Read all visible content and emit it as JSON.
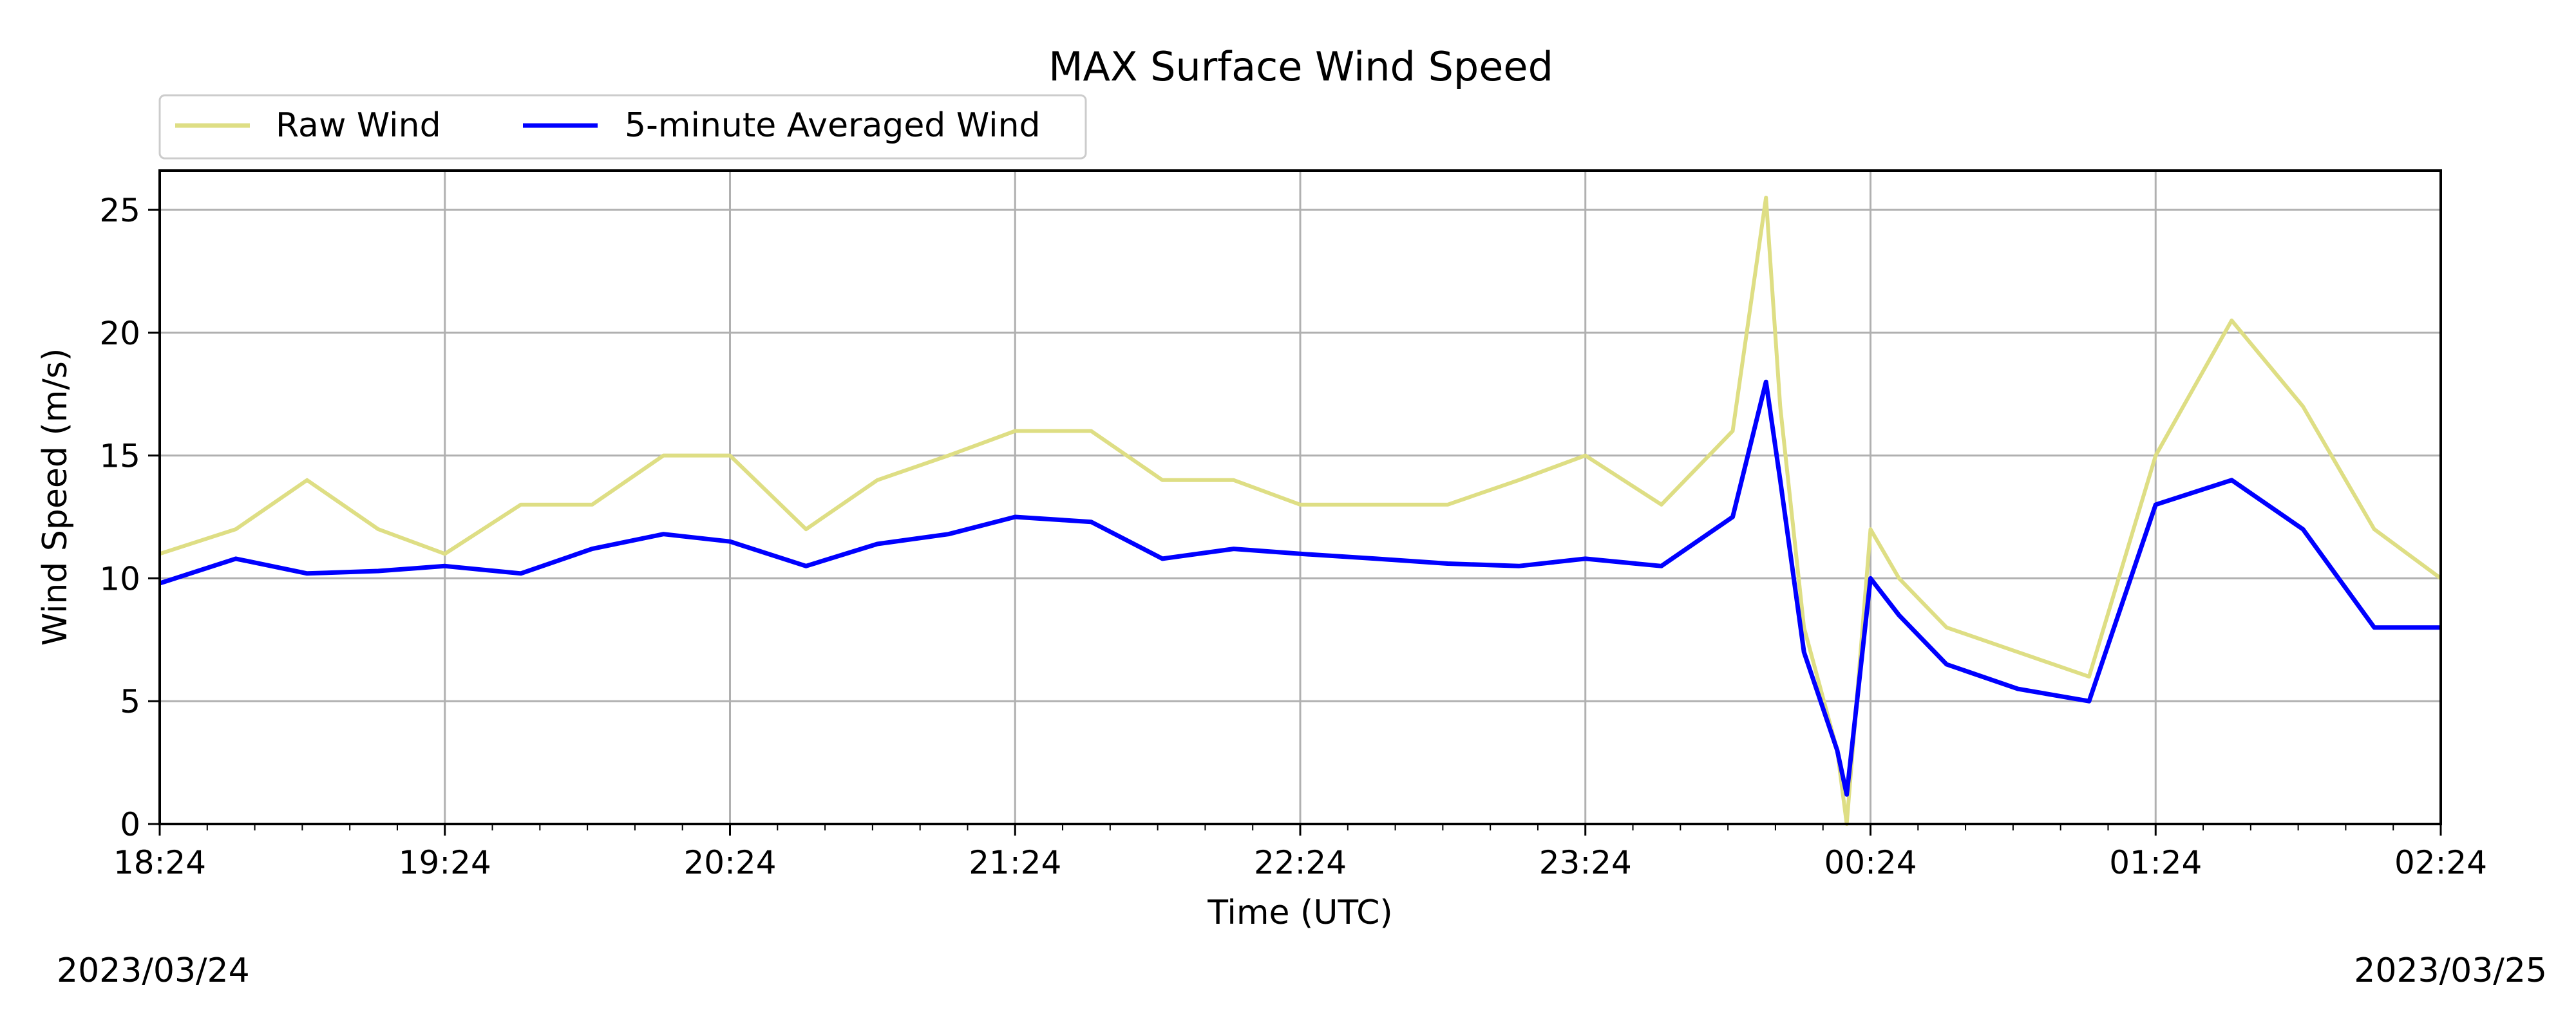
{
  "chart_data": {
    "type": "line",
    "title": "MAX Surface Wind Speed",
    "xlabel": "Time (UTC)",
    "ylabel": "Wind Speed (m/s)",
    "ylim": [
      0,
      26.6
    ],
    "xlim": [
      "2023-03-24 18:24",
      "2023-03-25 02:24"
    ],
    "x_tick_labels": [
      "18:24",
      "19:24",
      "20:24",
      "21:24",
      "22:24",
      "23:24",
      "00:24",
      "01:24",
      "02:24"
    ],
    "y_ticks": [
      0,
      5,
      10,
      15,
      20,
      25
    ],
    "grid": true,
    "legend_placement": "top-left",
    "date_left": "2023/03/24",
    "date_right": "2023/03/25",
    "series": [
      {
        "name": "Raw Wind",
        "color": "#dede84",
        "x": [
          "18:24",
          "18:40",
          "18:55",
          "19:10",
          "19:24",
          "19:40",
          "19:55",
          "20:10",
          "20:24",
          "20:40",
          "20:55",
          "21:10",
          "21:24",
          "21:40",
          "21:55",
          "22:10",
          "22:24",
          "22:40",
          "22:55",
          "23:10",
          "23:24",
          "23:40",
          "23:55",
          "00:02",
          "00:05",
          "00:10",
          "00:17",
          "00:19",
          "00:24",
          "00:30",
          "00:40",
          "00:55",
          "01:10",
          "01:24",
          "01:40",
          "01:55",
          "02:10",
          "02:24"
        ],
        "values": [
          11,
          12,
          14,
          12,
          11,
          13,
          13,
          15,
          15,
          12,
          14,
          15,
          16,
          16,
          14,
          14,
          13,
          13,
          13,
          14,
          15,
          13,
          16,
          25.5,
          17,
          8,
          3,
          0,
          12,
          10,
          8,
          7,
          6,
          15,
          20.5,
          17,
          12,
          10
        ]
      },
      {
        "name": "5-minute Averaged Wind",
        "color": "#0000ff",
        "x": [
          "18:24",
          "18:40",
          "18:55",
          "19:10",
          "19:24",
          "19:40",
          "19:55",
          "20:10",
          "20:24",
          "20:40",
          "20:55",
          "21:10",
          "21:24",
          "21:40",
          "21:55",
          "22:10",
          "22:24",
          "22:40",
          "22:55",
          "23:10",
          "23:24",
          "23:40",
          "23:55",
          "00:02",
          "00:05",
          "00:10",
          "00:17",
          "00:19",
          "00:24",
          "00:30",
          "00:40",
          "00:55",
          "01:10",
          "01:24",
          "01:40",
          "01:55",
          "02:10",
          "02:24"
        ],
        "values": [
          9.8,
          10.8,
          10.2,
          10.3,
          10.5,
          10.2,
          11.2,
          11.8,
          11.5,
          10.5,
          11.4,
          11.8,
          12.5,
          12.3,
          10.8,
          11.2,
          11.0,
          10.8,
          10.6,
          10.5,
          10.8,
          10.5,
          12.5,
          18.0,
          14.0,
          7.0,
          3.0,
          1.2,
          10.0,
          8.5,
          6.5,
          5.5,
          5.0,
          13.0,
          14.0,
          12.0,
          8.0,
          8.0
        ]
      }
    ]
  }
}
